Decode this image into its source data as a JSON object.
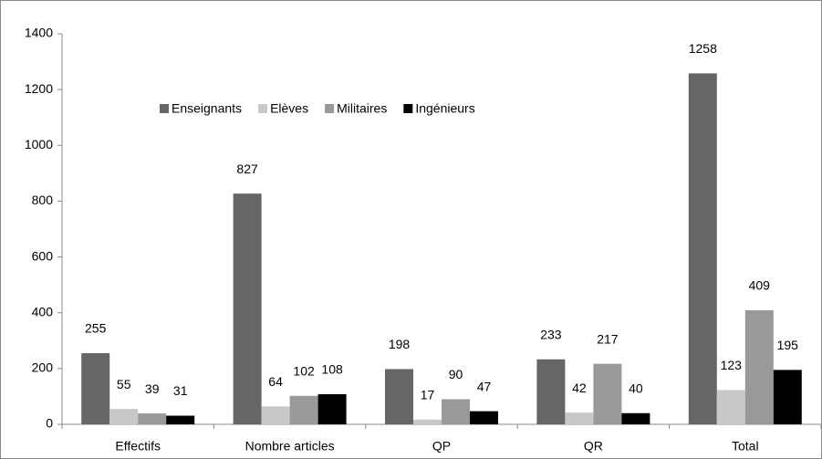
{
  "chart_data": {
    "type": "bar",
    "categories": [
      "Effectifs",
      "Nombre articles",
      "QP",
      "QR",
      "Total"
    ],
    "series": [
      {
        "name": "Enseignants",
        "color": "#666666",
        "values": [
          255,
          827,
          198,
          233,
          1258
        ]
      },
      {
        "name": "Elèves",
        "color": "#c8c8c8",
        "values": [
          55,
          64,
          17,
          42,
          123
        ]
      },
      {
        "name": "Militaires",
        "color": "#999999",
        "values": [
          39,
          102,
          90,
          217,
          409
        ]
      },
      {
        "name": "Ingénieurs",
        "color": "#000000",
        "values": [
          31,
          108,
          47,
          40,
          195
        ]
      }
    ],
    "ylim": [
      0,
      1400
    ],
    "yticks": [
      0,
      200,
      400,
      600,
      800,
      1000,
      1200,
      1400
    ],
    "grid": false,
    "legend": "top"
  }
}
